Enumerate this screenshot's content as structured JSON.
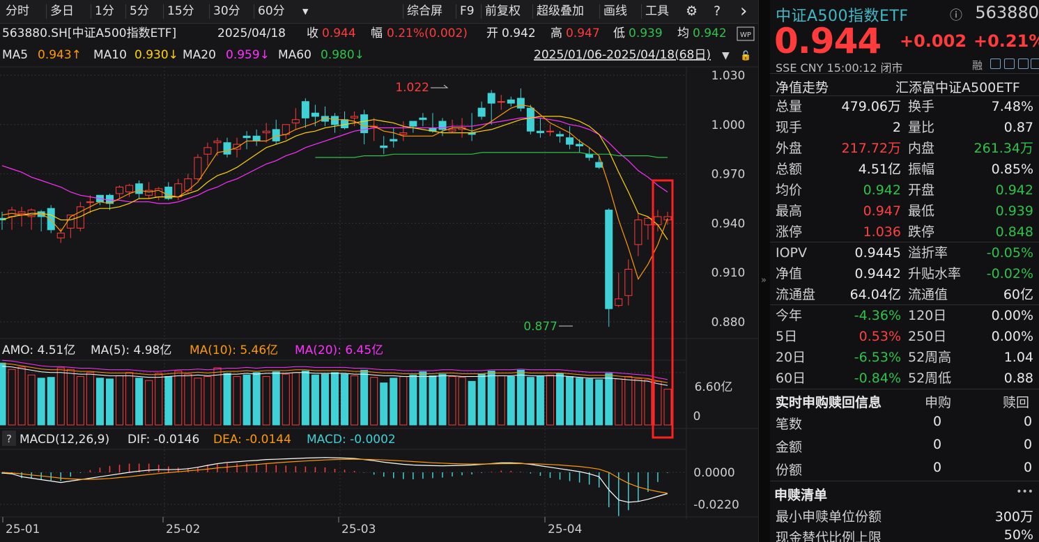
{
  "toolbar": {
    "periods": [
      "分时",
      "多日",
      "1分",
      "5分",
      "15分",
      "30分",
      "60分"
    ],
    "more_icon": "triangle-down-icon",
    "actions": [
      "综合屏",
      "F9",
      "前复权",
      "超级叠加",
      "画线",
      "工具"
    ],
    "settings_icon": "gear-icon",
    "help_icon": "question-icon",
    "nav_icon": "chevron-right-icon"
  },
  "info": {
    "code_name": "563880.SH[中证A500指数ETF]",
    "date": "2025/04/18",
    "close_label": "收",
    "close": "0.944",
    "range_label": "幅",
    "range": "0.21%(0.002)",
    "open_label": "开",
    "open": "0.942",
    "high_label": "高",
    "high": "0.947",
    "low_label": "低",
    "low": "0.939",
    "avg_label": "均",
    "avg": "0.942",
    "wp_badge": "WP"
  },
  "ma_line": {
    "ma5_label": "MA5",
    "ma5": "0.943↑",
    "ma10_label": "MA10",
    "ma10": "0.930↓",
    "ma20_label": "MA20",
    "ma20": "0.959↓",
    "ma60_label": "MA60",
    "ma60": "0.980↓",
    "range": "2025/01/06-2025/04/18(68日)"
  },
  "colors": {
    "up": "#ff3b3b",
    "down": "#3fd1d6",
    "ma5": "#ffffff",
    "ma10": "#ffd400",
    "ma20": "#ff30ff",
    "ma60": "#2ec24a",
    "candle_ma5": "#ff9a00",
    "highlight": "#ff2020"
  },
  "chart_data": {
    "type": "candlestick",
    "y_ticks": [
      "1.030",
      "1.000",
      "0.970",
      "0.940",
      "0.910",
      "0.880"
    ],
    "ylim": [
      0.868,
      1.034
    ],
    "x_ticks": [
      "25-01",
      "25-02",
      "25-03",
      "25-04"
    ],
    "annotations": {
      "high": "1.022",
      "low": "0.877"
    },
    "candles": [
      [
        0.943,
        0.942,
        0.947,
        0.936
      ],
      [
        0.944,
        0.948,
        0.95,
        0.936
      ],
      [
        0.946,
        0.947,
        0.95,
        0.938
      ],
      [
        0.944,
        0.948,
        0.949,
        0.936
      ],
      [
        0.947,
        0.944,
        0.948,
        0.935
      ],
      [
        0.949,
        0.936,
        0.951,
        0.934
      ],
      [
        0.931,
        0.934,
        0.937,
        0.928
      ],
      [
        0.937,
        0.945,
        0.945,
        0.931
      ],
      [
        0.937,
        0.95,
        0.953,
        0.935
      ],
      [
        0.953,
        0.953,
        0.957,
        0.946
      ],
      [
        0.957,
        0.953,
        0.957,
        0.951
      ],
      [
        0.957,
        0.952,
        0.958,
        0.948
      ],
      [
        0.958,
        0.962,
        0.963,
        0.955
      ],
      [
        0.959,
        0.963,
        0.964,
        0.956
      ],
      [
        0.964,
        0.958,
        0.966,
        0.955
      ],
      [
        0.957,
        0.96,
        0.965,
        0.955
      ],
      [
        0.956,
        0.961,
        0.962,
        0.954
      ],
      [
        0.962,
        0.955,
        0.965,
        0.954
      ],
      [
        0.956,
        0.964,
        0.967,
        0.954
      ],
      [
        0.96,
        0.967,
        0.97,
        0.958
      ],
      [
        0.967,
        0.98,
        0.982,
        0.966
      ],
      [
        0.982,
        0.986,
        0.989,
        0.975
      ],
      [
        0.989,
        0.99,
        0.992,
        0.981
      ],
      [
        0.989,
        0.982,
        0.992,
        0.98
      ],
      [
        0.985,
        0.988,
        0.992,
        0.98
      ],
      [
        0.993,
        0.992,
        0.996,
        0.985
      ],
      [
        0.993,
        0.99,
        0.997,
        0.987
      ],
      [
        0.995,
        0.996,
        1.001,
        0.989
      ],
      [
        0.997,
        0.99,
        1.003,
        0.988
      ],
      [
        0.994,
        1.0,
        1.0,
        0.991
      ],
      [
        1.001,
        1.003,
        1.01,
        0.997
      ],
      [
        1.014,
        1.004,
        1.016,
        0.998
      ],
      [
        1.007,
        1.005,
        1.012,
        0.999
      ],
      [
        1.005,
        1.002,
        1.011,
        0.999
      ],
      [
        1.005,
        1.0,
        1.007,
        0.995
      ],
      [
        1.003,
        0.998,
        1.008,
        0.997
      ],
      [
        1.004,
        1.005,
        1.008,
        0.999
      ],
      [
        1.006,
        0.995,
        1.009,
        0.988
      ],
      [
        0.999,
        0.999,
        1.004,
        0.99
      ],
      [
        0.987,
        0.986,
        0.993,
        0.982
      ],
      [
        0.991,
        0.99,
        0.998,
        0.986
      ],
      [
        0.994,
        0.995,
        1.002,
        0.99
      ],
      [
        1.002,
        0.999,
        1.002,
        0.995
      ],
      [
        1.004,
        1.003,
        1.007,
        0.999
      ],
      [
        0.998,
        0.996,
        1.007,
        0.995
      ],
      [
        1.002,
        0.997,
        1.004,
        0.993
      ],
      [
        0.996,
        0.997,
        1.003,
        0.995
      ],
      [
        0.997,
        0.998,
        1.004,
        0.992
      ],
      [
        0.995,
        0.994,
        1.007,
        0.99
      ],
      [
        1.01,
        1.005,
        1.014,
        1.003
      ],
      [
        1.019,
        1.013,
        1.021,
        1.0
      ],
      [
        1.014,
        1.014,
        1.018,
        1.009
      ],
      [
        1.015,
        1.013,
        1.017,
        1.011
      ],
      [
        1.016,
        1.01,
        1.022,
        1.008
      ],
      [
        1.01,
        0.996,
        1.012,
        0.994
      ],
      [
        0.996,
        0.995,
        1.004,
        0.992
      ],
      [
        0.996,
        0.996,
        1.0,
        0.993
      ],
      [
        0.994,
        0.993,
        0.996,
        0.989
      ],
      [
        0.992,
        0.988,
        0.999,
        0.985
      ],
      [
        0.988,
        0.987,
        0.991,
        0.983
      ],
      [
        0.982,
        0.98,
        0.986,
        0.978
      ],
      [
        0.977,
        0.974,
        0.981,
        0.973
      ],
      [
        0.948,
        0.888,
        0.949,
        0.877
      ],
      [
        0.89,
        0.894,
        0.91,
        0.889
      ],
      [
        0.896,
        0.912,
        0.918,
        0.89
      ],
      [
        0.927,
        0.942,
        0.946,
        0.92
      ],
      [
        0.939,
        0.943,
        0.944,
        0.93
      ],
      [
        0.939,
        0.944,
        0.948,
        0.935
      ],
      [
        0.942,
        0.944,
        0.947,
        0.939
      ]
    ],
    "ma5": [
      0.945,
      0.946,
      0.945,
      0.945,
      0.946,
      0.942,
      0.935,
      0.944,
      0.947,
      0.95,
      0.953,
      0.952,
      0.955,
      0.958,
      0.96,
      0.959,
      0.96,
      0.957,
      0.956,
      0.96,
      0.965,
      0.974,
      0.983,
      0.984,
      0.986,
      0.99,
      0.99,
      0.99,
      0.993,
      0.994,
      0.997,
      0.999,
      1.001,
      1.004,
      1.003,
      1.003,
      1.002,
      0.999,
      0.999,
      0.996,
      0.995,
      0.993,
      0.993,
      0.993,
      0.993,
      0.996,
      0.998,
      0.998,
      0.996,
      0.998,
      1.002,
      1.006,
      1.01,
      1.012,
      1.011,
      1.006,
      1.001,
      0.998,
      0.995,
      0.99,
      0.986,
      0.981,
      0.963,
      0.942,
      0.925,
      0.906,
      0.915,
      0.927,
      0.943
    ],
    "ma10": [
      0.942,
      0.944,
      0.945,
      0.946,
      0.946,
      0.945,
      0.942,
      0.942,
      0.944,
      0.947,
      0.949,
      0.949,
      0.95,
      0.952,
      0.955,
      0.955,
      0.956,
      0.956,
      0.956,
      0.958,
      0.96,
      0.965,
      0.969,
      0.971,
      0.974,
      0.978,
      0.982,
      0.986,
      0.988,
      0.99,
      0.993,
      0.995,
      0.996,
      0.998,
      0.999,
      1.0,
      1.001,
      1.002,
      1.003,
      1.002,
      1.001,
      0.999,
      0.998,
      0.997,
      0.996,
      0.995,
      0.995,
      0.995,
      0.995,
      0.996,
      0.997,
      0.999,
      1.001,
      1.003,
      1.004,
      1.005,
      1.005,
      1.005,
      1.004,
      1.002,
      0.999,
      0.994,
      0.984,
      0.971,
      0.959,
      0.946,
      0.944,
      0.939,
      0.93
    ],
    "ma20": [
      0.975,
      0.973,
      0.971,
      0.968,
      0.966,
      0.964,
      0.962,
      0.959,
      0.957,
      0.956,
      0.955,
      0.954,
      0.954,
      0.953,
      0.953,
      0.953,
      0.952,
      0.952,
      0.953,
      0.955,
      0.957,
      0.96,
      0.962,
      0.965,
      0.967,
      0.97,
      0.973,
      0.976,
      0.978,
      0.981,
      0.983,
      0.986,
      0.988,
      0.99,
      0.992,
      0.994,
      0.996,
      0.997,
      0.998,
      0.998,
      0.998,
      0.998,
      0.998,
      0.998,
      0.998,
      0.998,
      0.999,
      0.999,
      0.999,
      1.0,
      1.001,
      1.002,
      1.003,
      1.004,
      1.004,
      1.004,
      1.003,
      1.002,
      1.0,
      0.999,
      0.997,
      0.994,
      0.989,
      0.983,
      0.978,
      0.972,
      0.968,
      0.963,
      0.959
    ],
    "ma60_start": 32,
    "ma60": [
      0.98,
      0.98,
      0.98,
      0.98,
      0.98,
      0.981,
      0.981,
      0.981,
      0.982,
      0.982,
      0.982,
      0.982,
      0.982,
      0.982,
      0.982,
      0.982,
      0.982,
      0.983,
      0.983,
      0.983,
      0.983,
      0.983,
      0.983,
      0.983,
      0.983,
      0.983,
      0.983,
      0.983,
      0.982,
      0.982,
      0.982,
      0.981,
      0.981,
      0.981,
      0.981,
      0.98,
      0.98
    ]
  },
  "amo_panel": {
    "amo_label": "AMO: 4.51亿",
    "ma5_label": "MA(5): 4.98亿",
    "ma10_label": "MA(10): 5.46亿",
    "ma20_label": "MA(20): 6.45亿",
    "y_top": "6.60亿",
    "y_zero": "0",
    "volumes": [
      7.8,
      7.0,
      7.3,
      6.3,
      5.9,
      6.0,
      7.2,
      7.0,
      6.1,
      6.6,
      5.9,
      5.8,
      6.2,
      6.6,
      5.9,
      5.6,
      6.5,
      6.1,
      6.8,
      6.4,
      5.9,
      6.1,
      7.2,
      6.5,
      6.1,
      6.3,
      6.6,
      6.1,
      6.7,
      6.4,
      6.6,
      6.8,
      6.3,
      6.4,
      6.6,
      6.4,
      6.2,
      6.9,
      6.0,
      5.3,
      5.9,
      6.1,
      6.3,
      6.7,
      6.2,
      6.4,
      6.1,
      6.0,
      5.5,
      6.4,
      6.8,
      6.2,
      6.1,
      6.9,
      6.0,
      6.1,
      6.3,
      6.5,
      6.1,
      5.9,
      5.8,
      5.7,
      6.5,
      5.8,
      6.1,
      5.8,
      5.7,
      5.5,
      4.51
    ],
    "vma": [
      7.4,
      7.3,
      7.1,
      6.9,
      6.7,
      6.6,
      6.6,
      6.5,
      6.4,
      6.4,
      6.3,
      6.2,
      6.2,
      6.2,
      6.1,
      6.0,
      6.0,
      6.1,
      6.2,
      6.2,
      6.3,
      6.2,
      6.3,
      6.4,
      6.4,
      6.5,
      6.4,
      6.5,
      6.5,
      6.5,
      6.6,
      6.6,
      6.5,
      6.5,
      6.5,
      6.5,
      6.4,
      6.4,
      6.3,
      6.2,
      6.2,
      6.1,
      6.1,
      6.1,
      6.1,
      6.2,
      6.2,
      6.1,
      6.1,
      6.1,
      6.2,
      6.2,
      6.2,
      6.3,
      6.2,
      6.2,
      6.2,
      6.2,
      6.1,
      6.0,
      5.9,
      5.9,
      5.9,
      5.8,
      5.7,
      5.6,
      5.5,
      5.2,
      4.98
    ]
  },
  "macd_panel": {
    "help_icon": "question-icon",
    "title": "MACD(12,26,9)",
    "dif_label": "DIF: -0.0146",
    "dea_label": "DEA: -0.0144",
    "macd_label": "MACD: -0.0002",
    "y_ticks": [
      "0.0000",
      "-0.0220"
    ],
    "dif": [
      -0.0005,
      -0.001,
      -0.003,
      -0.004,
      -0.005,
      -0.006,
      -0.007,
      -0.006,
      -0.005,
      -0.004,
      -0.003,
      -0.002,
      -0.001,
      0.0,
      0.0008,
      0.0015,
      0.0018,
      0.0018,
      0.002,
      0.0025,
      0.0035,
      0.0048,
      0.006,
      0.0068,
      0.0072,
      0.0078,
      0.0082,
      0.0088,
      0.009,
      0.0093,
      0.0095,
      0.0098,
      0.01,
      0.0102,
      0.01,
      0.0098,
      0.0095,
      0.0088,
      0.008,
      0.007,
      0.0062,
      0.0055,
      0.005,
      0.0048,
      0.0046,
      0.0045,
      0.0046,
      0.0048,
      0.005,
      0.0055,
      0.006,
      0.0065,
      0.0065,
      0.0062,
      0.0055,
      0.0045,
      0.0035,
      0.0025,
      0.0015,
      0.0005,
      -0.001,
      -0.003,
      -0.012,
      -0.019,
      -0.0205,
      -0.02,
      -0.0185,
      -0.0165,
      -0.0146
    ],
    "dea": [
      0.0,
      -0.0005,
      -0.001,
      -0.0018,
      -0.0025,
      -0.0032,
      -0.004,
      -0.0045,
      -0.0048,
      -0.0048,
      -0.0046,
      -0.0042,
      -0.0036,
      -0.003,
      -0.0022,
      -0.0015,
      -0.0008,
      -0.0002,
      0.0004,
      0.001,
      0.0016,
      0.0022,
      0.003,
      0.0036,
      0.0042,
      0.0048,
      0.0054,
      0.006,
      0.0065,
      0.007,
      0.0074,
      0.0078,
      0.0082,
      0.0085,
      0.0088,
      0.0089,
      0.009,
      0.0089,
      0.0088,
      0.0085,
      0.0082,
      0.0078,
      0.0074,
      0.007,
      0.0066,
      0.0063,
      0.006,
      0.0058,
      0.0057,
      0.0057,
      0.0058,
      0.0059,
      0.006,
      0.006,
      0.0059,
      0.0057,
      0.0054,
      0.005,
      0.0045,
      0.004,
      0.0032,
      0.0022,
      0.0,
      -0.004,
      -0.0075,
      -0.01,
      -0.0118,
      -0.0132,
      -0.0144
    ]
  },
  "x_axis": {
    "labels": [
      "25-01",
      "25-02",
      "25-03",
      "25-04"
    ]
  },
  "quote": {
    "name": "中证A500指数ETF",
    "info_icon": "info-circle-icon",
    "code": "563880",
    "price": "0.944",
    "change": "+0.002",
    "change_pct": "+0.21%",
    "meta": "SSE  CNY  15:00:12  闭市",
    "rong": "融",
    "icons": [
      "edit-icon",
      "bell-icon",
      "home-icon",
      "window-icon"
    ],
    "nav_left": "净值走势",
    "nav_right": "汇添富中证A500ETF",
    "rows": [
      [
        "总量",
        "479.06万",
        "",
        "换手",
        "7.48%",
        ""
      ],
      [
        "现手",
        "2",
        "",
        "量比",
        "0.87",
        ""
      ],
      [
        "外盘",
        "217.72万",
        "red",
        "内盘",
        "261.34万",
        "green"
      ],
      [
        "总额",
        "4.51亿",
        "",
        "振幅",
        "0.85%",
        ""
      ],
      [
        "均价",
        "0.942",
        "green",
        "开盘",
        "0.942",
        "green"
      ],
      [
        "最高",
        "0.947",
        "red",
        "最低",
        "0.939",
        "green"
      ],
      [
        "涨停",
        "1.036",
        "red",
        "跌停",
        "0.848",
        "green"
      ]
    ],
    "rows2": [
      [
        "IOPV",
        "0.9445",
        "",
        "溢折率",
        "-0.05%",
        "green"
      ],
      [
        "净值",
        "0.9442",
        "",
        "升贴水率",
        "-0.02%",
        "green"
      ],
      [
        "流通盘",
        "64.04亿",
        "",
        "流通值",
        "60亿",
        ""
      ]
    ],
    "rows3": [
      [
        "今年",
        "-4.36%",
        "green",
        "120日",
        "0.00%",
        ""
      ],
      [
        "5日",
        "0.53%",
        "red",
        "250日",
        "0.00%",
        ""
      ],
      [
        "20日",
        "-6.53%",
        "green",
        "52周高",
        "1.04",
        ""
      ],
      [
        "60日",
        "-0.84%",
        "green",
        "52周低",
        "0.88",
        ""
      ]
    ],
    "sub_title": "实时申购赎回信息",
    "sub_h1": "申购",
    "sub_h2": "赎回",
    "sub_rows": [
      [
        "笔数",
        "0",
        "0"
      ],
      [
        "金额",
        "0",
        "0"
      ],
      [
        "份额",
        "0",
        "0"
      ]
    ],
    "list_title": "申赎清单",
    "list_more": "•••",
    "list_rows": [
      [
        "最小申赎单位份额",
        "300万"
      ],
      [
        "现金替代比例上限",
        "50%"
      ]
    ]
  }
}
